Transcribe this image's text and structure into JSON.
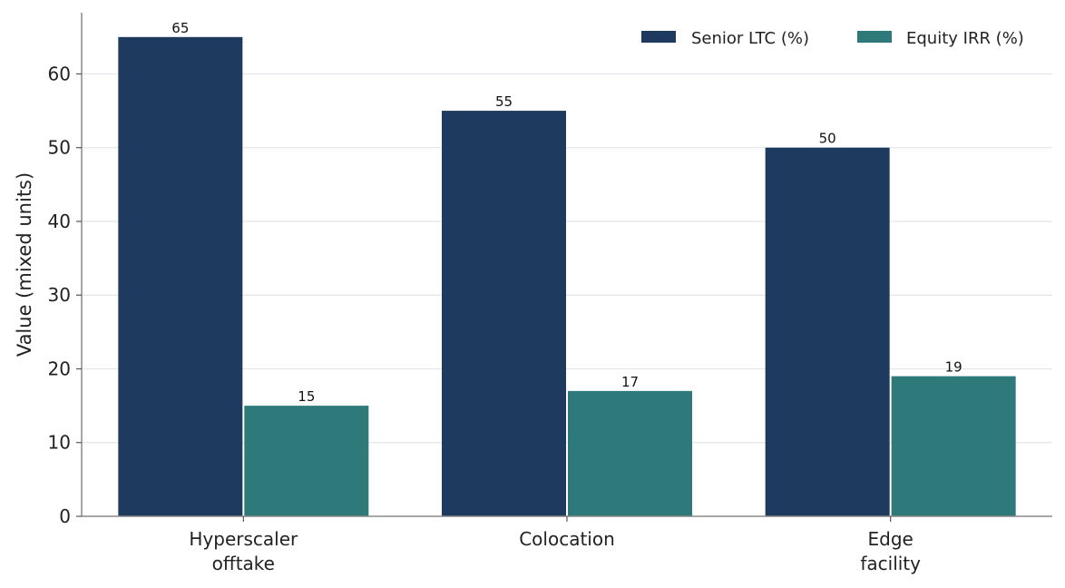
{
  "chart_data": {
    "type": "bar",
    "title": "",
    "xlabel": "",
    "ylabel": "Value (mixed units)",
    "categories": [
      [
        "Hyperscaler",
        "offtake"
      ],
      [
        "Colocation"
      ],
      [
        "Edge",
        "facility"
      ]
    ],
    "series": [
      {
        "name": "Senior LTC (%)",
        "color": "#1f3a5f",
        "values": [
          65,
          55,
          50
        ]
      },
      {
        "name": "Equity IRR (%)",
        "color": "#2e7a7b",
        "values": [
          15,
          17,
          19
        ]
      }
    ],
    "ylim": [
      0,
      68.3
    ],
    "yticks": [
      0,
      10,
      20,
      30,
      40,
      50,
      60
    ],
    "grid": "horizontal",
    "legend": "top-right",
    "data_labels": true
  }
}
